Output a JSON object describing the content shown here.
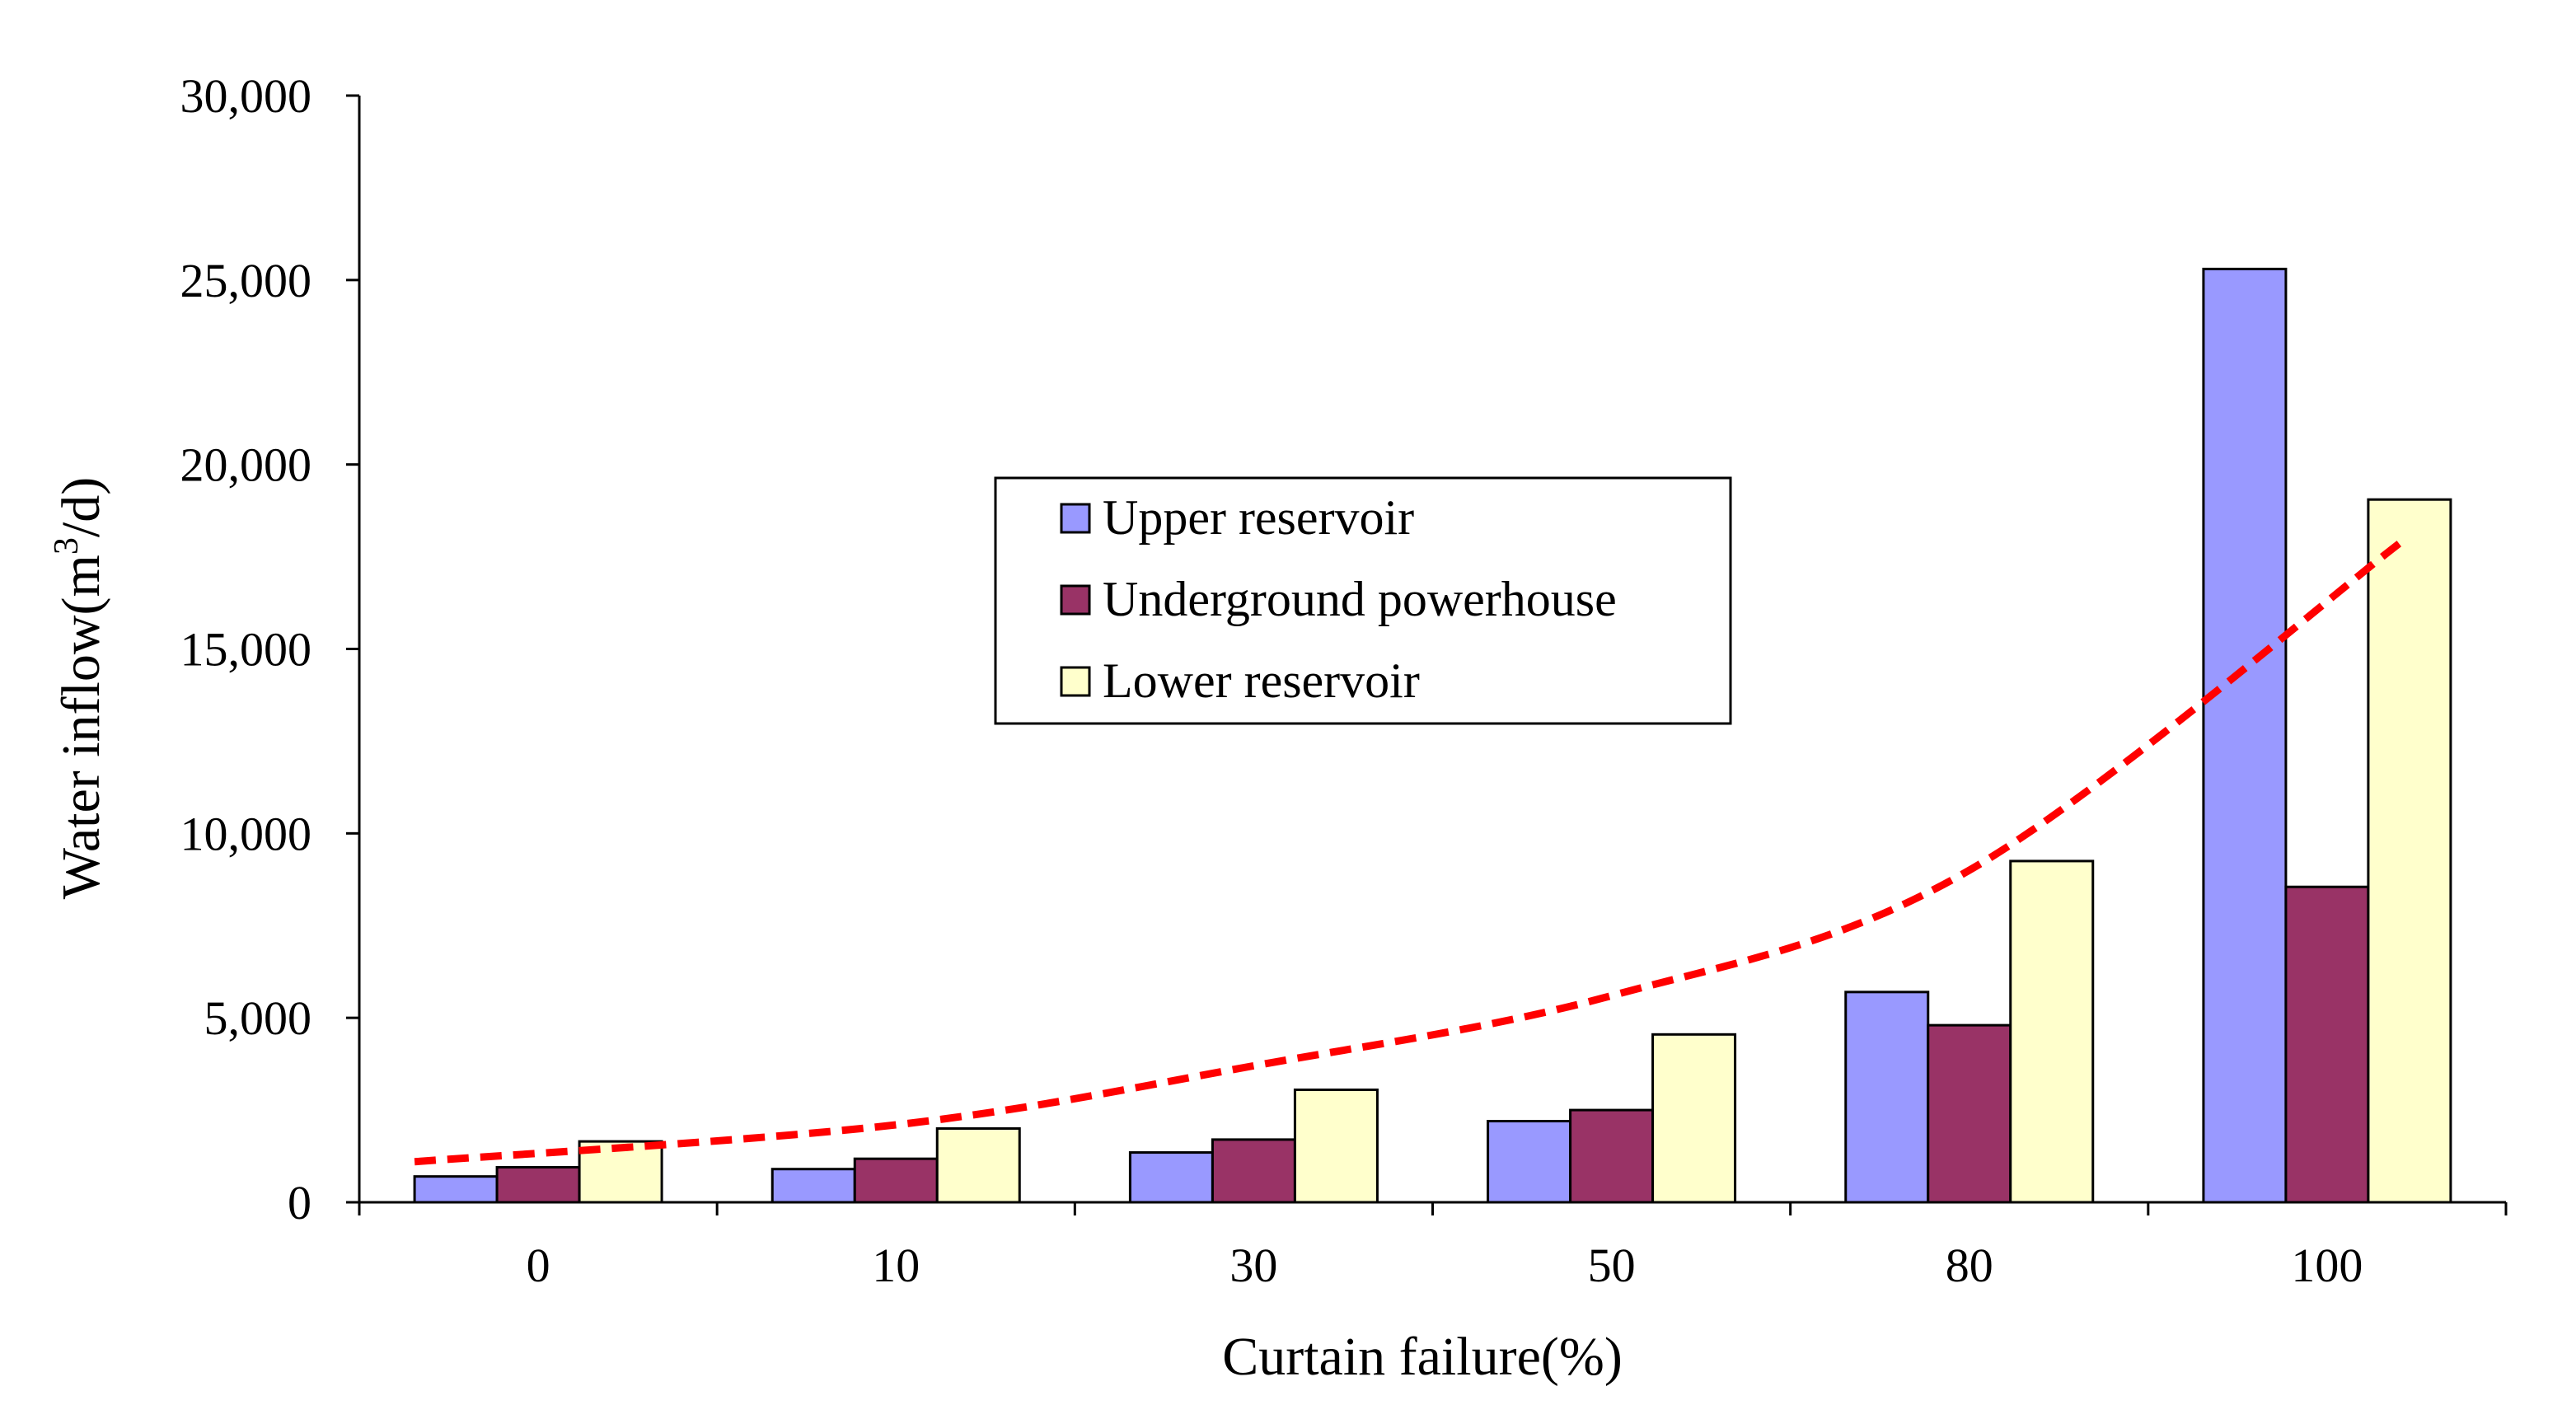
{
  "chart_data": {
    "type": "bar",
    "title": "",
    "xlabel": "Curtain failure(%)",
    "ylabel_parts": {
      "pre": "Water inflow(m",
      "sup": "3",
      "post": "/d)"
    },
    "categories": [
      "0",
      "10",
      "30",
      "50",
      "80",
      "100"
    ],
    "ylim": [
      0,
      30000
    ],
    "yticks": [
      0,
      5000,
      10000,
      15000,
      20000,
      25000,
      30000
    ],
    "ytick_labels": [
      "0",
      "5,000",
      "10,000",
      "15,000",
      "20,000",
      "25,000",
      "30,000"
    ],
    "series": [
      {
        "name": "Upper reservoir",
        "color": "#9999FF",
        "values": [
          700,
          900,
          1350,
          2200,
          5700,
          25300
        ]
      },
      {
        "name": "Underground powerhouse",
        "color": "#993366",
        "values": [
          950,
          1180,
          1700,
          2500,
          4800,
          8550
        ]
      },
      {
        "name": "Lower reservoir",
        "color": "#FFFFCC",
        "values": [
          1650,
          2000,
          3050,
          4550,
          9250,
          19050
        ]
      }
    ],
    "trendline": {
      "type": "exponential",
      "color": "#FF0000",
      "style": "dashed",
      "points": [
        [
          0,
          1100
        ],
        [
          10,
          2100
        ],
        [
          30,
          3700
        ],
        [
          50,
          5600
        ],
        [
          80,
          9000
        ],
        [
          100,
          17900
        ]
      ]
    },
    "legend_position": "center"
  }
}
